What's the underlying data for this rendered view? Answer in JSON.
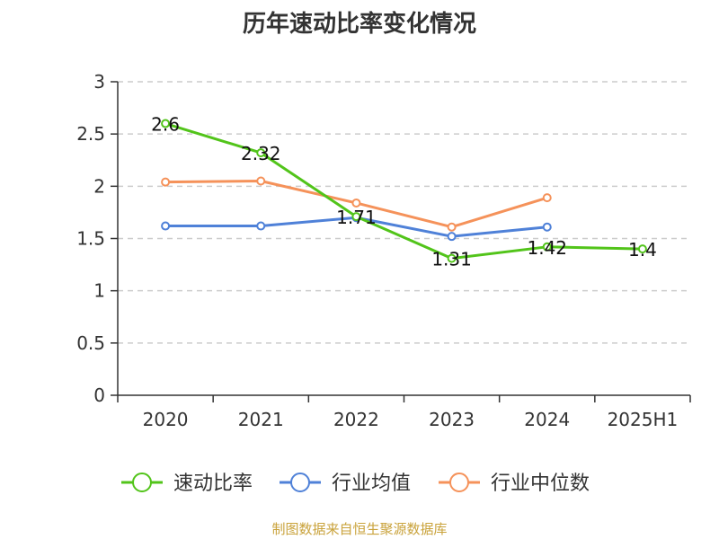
{
  "chart_data": {
    "type": "line",
    "title": "历年速动比率变化情况",
    "categories": [
      "2020",
      "2021",
      "2022",
      "2023",
      "2024",
      "2025H1"
    ],
    "ylim": [
      0,
      3
    ],
    "yticks": [
      "0",
      "0.5",
      "1",
      "1.5",
      "2",
      "2.5",
      "3"
    ],
    "grid": true,
    "legend_position": "bottom",
    "series": [
      {
        "name": "速动比率",
        "color": "#52c41a",
        "values": [
          2.6,
          2.32,
          1.71,
          1.31,
          1.42,
          1.4
        ],
        "labels": [
          "2.6",
          "2.32",
          "1.71",
          "1.31",
          "1.42",
          "1.4"
        ]
      },
      {
        "name": "行业均值",
        "color": "#4f81d8",
        "values": [
          1.62,
          1.62,
          1.7,
          1.52,
          1.61,
          null
        ]
      },
      {
        "name": "行业中位数",
        "color": "#f5925a",
        "values": [
          2.04,
          2.05,
          1.84,
          1.61,
          1.89,
          null
        ]
      }
    ]
  },
  "source": "制图数据来自恒生聚源数据库"
}
